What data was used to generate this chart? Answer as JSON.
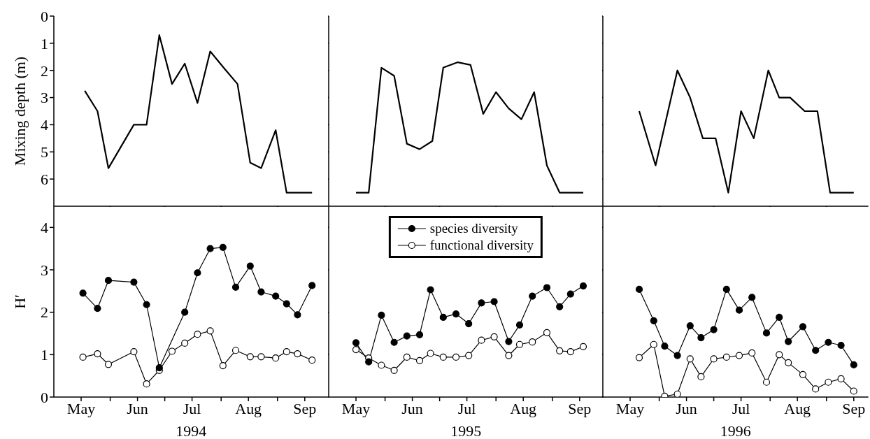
{
  "chart_data": [
    {
      "type": "line",
      "ylabel": "Mixing depth (m)",
      "xlim": [
        "--05-01",
        "--09-29"
      ],
      "ylim": [
        7,
        0
      ],
      "yticks": [
        0,
        1,
        2,
        3,
        4,
        5,
        6
      ],
      "xticks": [
        {
          "value": "--06-01",
          "label": null
        },
        {
          "value": "--07-01",
          "label": null
        },
        {
          "value": "--08-01",
          "label": null
        },
        {
          "value": "--09-01",
          "label": null
        }
      ],
      "tick_labels": "y",
      "x": [
        "--05-18",
        "--05-25",
        "--05-31",
        "--06-14",
        "--06-21",
        "--06-28",
        "--07-05",
        "--07-12",
        "--07-19",
        "--07-26",
        "--08-03",
        "--08-10",
        "--08-17",
        "--08-23",
        "--08-31",
        "--09-06",
        "--09-20"
      ],
      "series": [
        {
          "color": "#000000",
          "values": [
            2.75,
            3.5,
            5.6,
            4.0,
            4.0,
            0.7,
            2.5,
            1.75,
            3.2,
            1.3,
            1.95,
            2.5,
            5.4,
            5.6,
            4.2,
            6.5,
            6.5
          ]
        }
      ]
    },
    {
      "type": "line",
      "xlim": [
        "--05-01",
        "--09-29"
      ],
      "ylim": [
        7,
        0
      ],
      "yticks": [
        0,
        1,
        2,
        3,
        4,
        5,
        6
      ],
      "xticks": [
        {
          "value": "--06-01",
          "label": null
        },
        {
          "value": "--07-01",
          "label": null
        },
        {
          "value": "--08-01",
          "label": null
        },
        {
          "value": "--09-01",
          "label": null
        }
      ],
      "tick_labels": false,
      "x": [
        "--05-16",
        "--05-23",
        "--05-30",
        "--06-06",
        "--06-13",
        "--06-20",
        "--06-27",
        "--07-03",
        "--07-11",
        "--07-18",
        "--07-25",
        "--08-01",
        "--08-08",
        "--08-15",
        "--08-22",
        "--08-29",
        "--09-05",
        "--09-18"
      ],
      "series": [
        {
          "color": "#000000",
          "values": [
            6.5,
            6.5,
            1.9,
            2.2,
            4.7,
            4.9,
            4.6,
            1.9,
            1.7,
            1.8,
            3.6,
            2.8,
            3.4,
            3.8,
            2.8,
            5.5,
            6.5,
            6.5
          ]
        }
      ]
    },
    {
      "type": "line",
      "xlim": [
        "--05-01",
        "--09-24"
      ],
      "ylim": [
        7,
        0
      ],
      "yticks": [
        0,
        1,
        2,
        3,
        4,
        5,
        6
      ],
      "xticks": [
        {
          "value": "--06-01",
          "label": null
        },
        {
          "value": "--07-01",
          "label": null
        },
        {
          "value": "--08-01",
          "label": null
        },
        {
          "value": "--09-01",
          "label": null
        }
      ],
      "tick_labels": false,
      "x": [
        "--05-21",
        "--05-30",
        "--06-11",
        "--06-18",
        "--06-25",
        "--07-02",
        "--07-09",
        "--07-16",
        "--07-23",
        "--07-31",
        "--08-06",
        "--08-12",
        "--08-20",
        "--08-27",
        "--09-03",
        "--09-16"
      ],
      "series": [
        {
          "color": "#000000",
          "values": [
            3.5,
            5.5,
            2.0,
            3.0,
            4.5,
            4.5,
            6.5,
            3.5,
            4.5,
            2.0,
            3.0,
            3.0,
            3.5,
            3.5,
            6.5,
            6.5
          ]
        }
      ]
    },
    {
      "type": "line",
      "ylabel": "H′",
      "xlabel": "1994",
      "xlim": [
        "--05-01",
        "--09-29"
      ],
      "ylim": [
        0,
        4.5
      ],
      "yticks": [
        0,
        1,
        2,
        3,
        4
      ],
      "xticks": [
        {
          "value": "--05-16",
          "label": "May"
        },
        {
          "value": "--06-01",
          "label": null
        },
        {
          "value": "--06-16",
          "label": "Jun"
        },
        {
          "value": "--07-01",
          "label": null
        },
        {
          "value": "--07-16",
          "label": "Jul"
        },
        {
          "value": "--08-01",
          "label": null
        },
        {
          "value": "--08-16",
          "label": "Aug"
        },
        {
          "value": "--09-01",
          "label": null
        },
        {
          "value": "--09-16",
          "label": "Sep"
        }
      ],
      "marker": "circle",
      "x": [
        "--05-17",
        "--05-25",
        "--05-31",
        "--06-14",
        "--06-21",
        "--06-28",
        "--07-05",
        "--07-12",
        "--07-19",
        "--07-26",
        "--08-02",
        "--08-09",
        "--08-17",
        "--08-23",
        "--08-31",
        "--09-06",
        "--09-12",
        "--09-20"
      ],
      "series": [
        {
          "color": "#000000",
          "values": [
            2.45,
            2.09,
            2.75,
            2.71,
            2.18,
            0.69,
            null,
            2.0,
            2.93,
            3.5,
            3.53,
            2.59,
            3.09,
            2.48,
            2.38,
            2.2,
            1.94,
            2.63
          ]
        },
        {
          "color": "#000000",
          "values": [
            0.94,
            1.02,
            0.77,
            1.07,
            0.31,
            0.63,
            1.08,
            1.27,
            1.48,
            1.56,
            0.74,
            1.1,
            0.95,
            0.95,
            0.92,
            1.07,
            1.02,
            0.87
          ]
        }
      ]
    },
    {
      "type": "line",
      "xlabel": "1995",
      "xlim": [
        "--05-01",
        "--09-29"
      ],
      "ylim": [
        0,
        4.5
      ],
      "yticks": [
        0,
        1,
        2,
        3,
        4
      ],
      "xticks": [
        {
          "value": "--05-16",
          "label": "May"
        },
        {
          "value": "--06-01",
          "label": null
        },
        {
          "value": "--06-16",
          "label": "Jun"
        },
        {
          "value": "--07-01",
          "label": null
        },
        {
          "value": "--07-16",
          "label": "Jul"
        },
        {
          "value": "--08-01",
          "label": null
        },
        {
          "value": "--08-16",
          "label": "Aug"
        },
        {
          "value": "--09-01",
          "label": null
        },
        {
          "value": "--09-16",
          "label": "Sep"
        }
      ],
      "tick_labels": "x",
      "legend": "top",
      "marker": "circle",
      "x": [
        "--05-16",
        "--05-23",
        "--05-30",
        "--06-06",
        "--06-13",
        "--06-20",
        "--06-26",
        "--07-03",
        "--07-10",
        "--07-17",
        "--07-24",
        "--07-31",
        "--08-08",
        "--08-14",
        "--08-21",
        "--08-29",
        "--09-05",
        "--09-11",
        "--09-18"
      ],
      "series": [
        {
          "name": "species diversity",
          "color": "#000000",
          "values": [
            1.28,
            0.83,
            1.93,
            1.29,
            1.44,
            1.47,
            2.53,
            1.88,
            1.96,
            1.73,
            2.22,
            2.25,
            1.31,
            1.7,
            2.38,
            2.58,
            2.13,
            2.43,
            2.62
          ]
        },
        {
          "name": "functional diversity",
          "color": "#000000",
          "values": [
            1.12,
            0.92,
            0.75,
            0.63,
            0.94,
            0.86,
            1.03,
            0.94,
            0.94,
            0.98,
            1.34,
            1.42,
            0.98,
            1.24,
            1.3,
            1.52,
            1.09,
            1.07,
            1.19
          ]
        }
      ]
    },
    {
      "type": "line",
      "xlabel": "1996",
      "xlim": [
        "--05-01",
        "--09-24"
      ],
      "ylim": [
        0,
        4.5
      ],
      "yticks": [
        0,
        1,
        2,
        3,
        4
      ],
      "xticks": [
        {
          "value": "--05-16",
          "label": "May"
        },
        {
          "value": "--06-01",
          "label": null
        },
        {
          "value": "--06-16",
          "label": "Jun"
        },
        {
          "value": "--07-01",
          "label": null
        },
        {
          "value": "--07-16",
          "label": "Jul"
        },
        {
          "value": "--08-01",
          "label": null
        },
        {
          "value": "--08-16",
          "label": "Aug"
        },
        {
          "value": "--09-01",
          "label": null
        },
        {
          "value": "--09-16",
          "label": "Sep"
        }
      ],
      "tick_labels": "x",
      "marker": "circle",
      "x": [
        "--05-21",
        "--05-29",
        "--06-04",
        "--06-11",
        "--06-18",
        "--06-24",
        "--07-01",
        "--07-08",
        "--07-15",
        "--07-22",
        "--07-30",
        "--08-06",
        "--08-11",
        "--08-19",
        "--08-26",
        "--09-02",
        "--09-09",
        "--09-16"
      ],
      "series": [
        {
          "color": "#000000",
          "values": [
            2.54,
            1.8,
            1.2,
            0.98,
            1.68,
            1.4,
            1.59,
            2.54,
            2.05,
            2.35,
            1.51,
            1.88,
            1.31,
            1.66,
            1.1,
            1.29,
            1.22,
            0.76
          ]
        },
        {
          "color": "#000000",
          "values": [
            0.93,
            1.24,
            0.02,
            0.07,
            0.9,
            0.48,
            0.9,
            0.94,
            0.98,
            1.04,
            0.35,
            1.0,
            0.81,
            0.53,
            0.19,
            0.35,
            0.43,
            0.14
          ]
        }
      ]
    }
  ]
}
